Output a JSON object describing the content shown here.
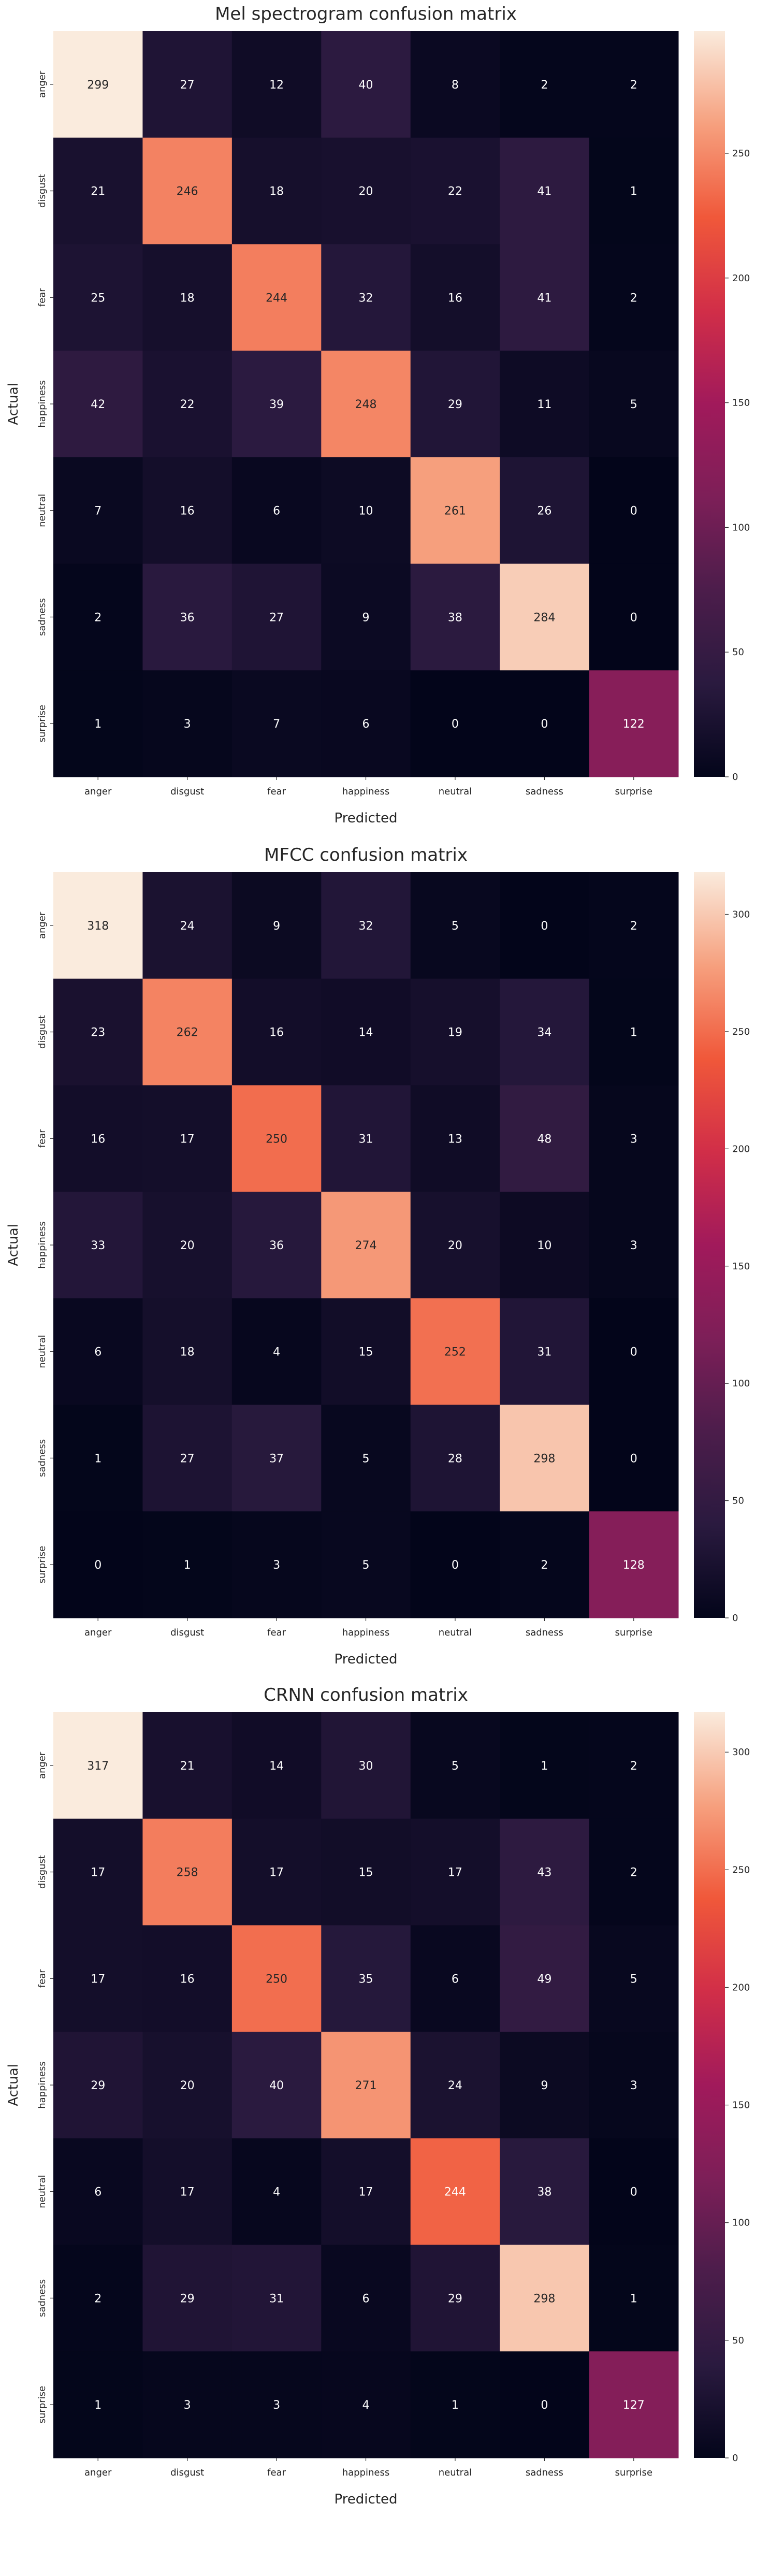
{
  "chart_data": [
    {
      "type": "heatmap",
      "title": "Mel spectrogram confusion matrix",
      "xlabel": "Predicted",
      "ylabel": "Actual",
      "colormap": "rocket",
      "x_categories": [
        "anger",
        "disgust",
        "fear",
        "happiness",
        "neutral",
        "sadness",
        "surprise"
      ],
      "y_categories": [
        "anger",
        "disgust",
        "fear",
        "happiness",
        "neutral",
        "sadness",
        "surprise"
      ],
      "values": [
        [
          299,
          27,
          12,
          40,
          8,
          2,
          2
        ],
        [
          21,
          246,
          18,
          20,
          22,
          41,
          1
        ],
        [
          25,
          18,
          244,
          32,
          16,
          41,
          2
        ],
        [
          42,
          22,
          39,
          248,
          29,
          11,
          5
        ],
        [
          7,
          16,
          6,
          10,
          261,
          26,
          0
        ],
        [
          2,
          36,
          27,
          9,
          38,
          284,
          0
        ],
        [
          1,
          3,
          7,
          6,
          0,
          0,
          122
        ]
      ],
      "colorbar": {
        "min": 0,
        "max": 299,
        "ticks": [
          0,
          50,
          100,
          150,
          200,
          250
        ]
      }
    },
    {
      "type": "heatmap",
      "title": "MFCC confusion matrix",
      "xlabel": "Predicted",
      "ylabel": "Actual",
      "colormap": "rocket",
      "x_categories": [
        "anger",
        "disgust",
        "fear",
        "happiness",
        "neutral",
        "sadness",
        "surprise"
      ],
      "y_categories": [
        "anger",
        "disgust",
        "fear",
        "happiness",
        "neutral",
        "sadness",
        "surprise"
      ],
      "values": [
        [
          318,
          24,
          9,
          32,
          5,
          0,
          2
        ],
        [
          23,
          262,
          16,
          14,
          19,
          34,
          1
        ],
        [
          16,
          17,
          250,
          31,
          13,
          48,
          3
        ],
        [
          33,
          20,
          36,
          274,
          20,
          10,
          3
        ],
        [
          6,
          18,
          4,
          15,
          252,
          31,
          0
        ],
        [
          1,
          27,
          37,
          5,
          28,
          298,
          0
        ],
        [
          0,
          1,
          3,
          5,
          0,
          2,
          128
        ]
      ],
      "colorbar": {
        "min": 0,
        "max": 318,
        "ticks": [
          0,
          50,
          100,
          150,
          200,
          250,
          300
        ]
      }
    },
    {
      "type": "heatmap",
      "title": "CRNN confusion matrix",
      "xlabel": "Predicted",
      "ylabel": "Actual",
      "colormap": "rocket",
      "x_categories": [
        "anger",
        "disgust",
        "fear",
        "happiness",
        "neutral",
        "sadness",
        "surprise"
      ],
      "y_categories": [
        "anger",
        "disgust",
        "fear",
        "happiness",
        "neutral",
        "sadness",
        "surprise"
      ],
      "values": [
        [
          317,
          21,
          14,
          30,
          5,
          1,
          2
        ],
        [
          17,
          258,
          17,
          15,
          17,
          43,
          2
        ],
        [
          17,
          16,
          250,
          35,
          6,
          49,
          5
        ],
        [
          29,
          20,
          40,
          271,
          24,
          9,
          3
        ],
        [
          6,
          17,
          4,
          17,
          244,
          38,
          0
        ],
        [
          2,
          29,
          31,
          6,
          29,
          298,
          1
        ],
        [
          1,
          3,
          3,
          4,
          1,
          0,
          127
        ]
      ],
      "colorbar": {
        "min": 0,
        "max": 317,
        "ticks": [
          0,
          50,
          100,
          150,
          200,
          250,
          300
        ]
      }
    }
  ]
}
